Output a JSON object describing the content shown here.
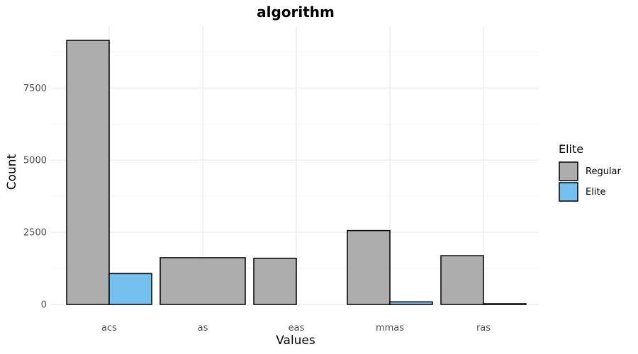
{
  "chart_data": {
    "type": "bar",
    "title": "algorithm",
    "xlabel": "Values",
    "ylabel": "Count",
    "categories": [
      "acs",
      "as",
      "eas",
      "mmas",
      "ras"
    ],
    "series": [
      {
        "name": "Regular",
        "color": "#adadad",
        "values": [
          9150,
          1620,
          1600,
          2560,
          1690
        ]
      },
      {
        "name": "Elite",
        "color": "#74c1f0",
        "values": [
          1070,
          null,
          0,
          90,
          25
        ]
      }
    ],
    "ylim": [
      0,
      9150
    ],
    "yticks": [
      0,
      2500,
      5000,
      7500
    ],
    "ytick_labels": [
      "0",
      "2500",
      "5000",
      "7500"
    ],
    "grid": true,
    "legend": {
      "title": "Elite",
      "position": "right"
    },
    "bar_position": "dodge (single bar fills full width when only one group present)"
  }
}
